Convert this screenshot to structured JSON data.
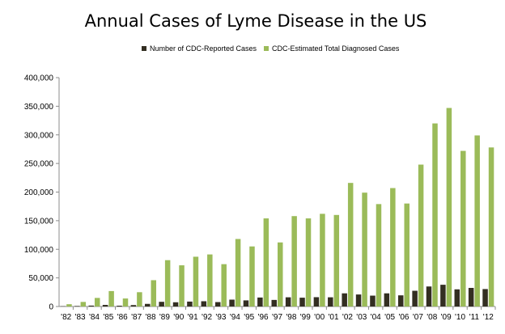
{
  "chart_data": {
    "type": "bar",
    "title": "Annual Cases of Lyme Disease in the US",
    "xlabel": "",
    "ylabel": "",
    "ylim": [
      0,
      400000
    ],
    "yticks": [
      "0",
      "50,000",
      "100,000",
      "150,000",
      "200,000",
      "250,000",
      "300,000",
      "350,000",
      "400,000"
    ],
    "ytick_values": [
      0,
      50000,
      100000,
      150000,
      200000,
      250000,
      300000,
      350000,
      400000
    ],
    "categories": [
      "'82",
      "'83",
      "'84",
      "'85",
      "'86",
      "'87",
      "'88",
      "'89",
      "'90",
      "'91",
      "'92",
      "'93",
      "'94",
      "'95",
      "'96",
      "'97",
      "'98",
      "'99",
      "'00",
      "'01",
      "'02",
      "'03",
      "'04",
      "'05",
      "'06",
      "'07",
      "'08",
      "'09",
      "'10",
      "'11",
      "'12"
    ],
    "series": [
      {
        "name": "Number of CDC-Reported Cases",
        "color": "#332e22",
        "values": [
          500,
          900,
          1600,
          2800,
          1400,
          2500,
          4600,
          8200,
          7400,
          8600,
          9200,
          7700,
          12000,
          10700,
          15700,
          11500,
          16100,
          15400,
          16300,
          16100,
          23000,
          21000,
          19000,
          23000,
          19500,
          27500,
          35000,
          38000,
          30000,
          32500,
          30500
        ]
      },
      {
        "name": "CDC-Estimated Total Diagnosed Cases",
        "color": "#9bbb59",
        "values": [
          4000,
          8000,
          15000,
          27000,
          14000,
          25000,
          46000,
          81000,
          72000,
          87000,
          91000,
          74000,
          118000,
          105000,
          154000,
          112000,
          158000,
          154000,
          162000,
          160000,
          216000,
          199000,
          179000,
          207000,
          180000,
          248000,
          320000,
          347000,
          272000,
          299000,
          278000
        ]
      }
    ],
    "legend_position": "top-center",
    "grid": false
  }
}
